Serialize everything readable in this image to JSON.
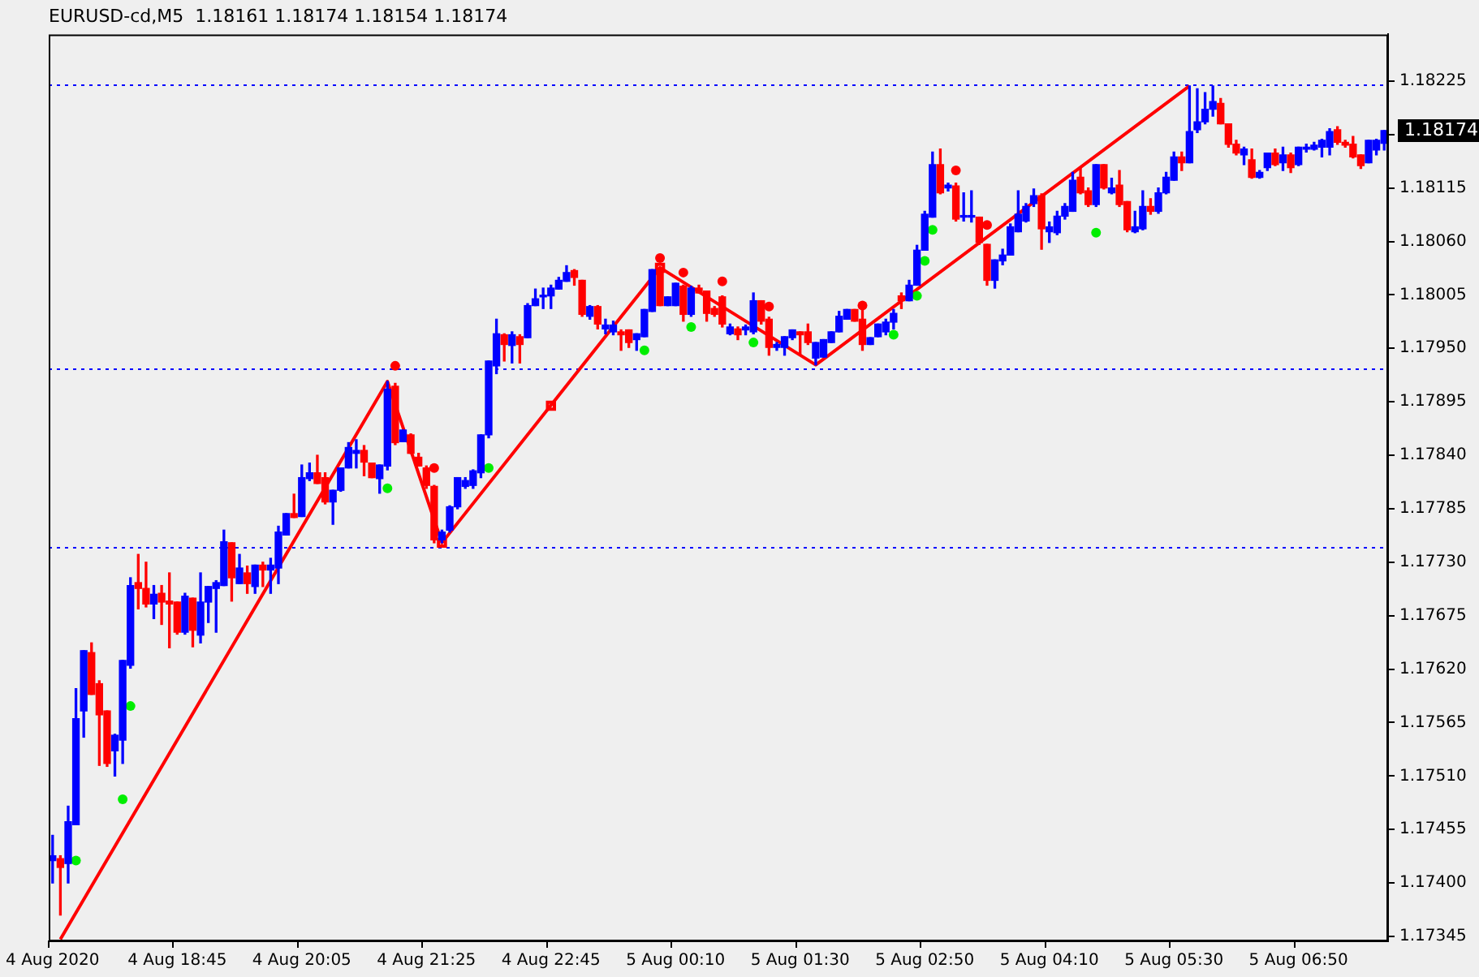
{
  "chart_data": {
    "type": "candlestick",
    "title": "EURUSD-cd,M5  1.18161 1.18174 1.18154 1.18174",
    "categories": [
      "4 Aug 2020",
      null,
      null,
      null,
      null,
      null,
      null,
      null,
      null,
      null,
      null,
      null,
      null,
      null,
      null,
      null,
      "4 Aug 18:45",
      null,
      null,
      null,
      null,
      null,
      null,
      null,
      null,
      null,
      null,
      null,
      null,
      null,
      null,
      null,
      "4 Aug 20:05",
      null,
      null,
      null,
      null,
      null,
      null,
      null,
      null,
      null,
      null,
      null,
      null,
      null,
      null,
      null,
      "4 Aug 21:25",
      null,
      null,
      null,
      null,
      null,
      null,
      null,
      null,
      null,
      null,
      null,
      null,
      null,
      null,
      null,
      "4 Aug 22:45",
      null,
      null,
      null,
      null,
      null,
      null,
      null,
      null,
      null,
      null,
      null,
      null,
      null,
      null,
      null,
      "5 Aug 00:10",
      null,
      null,
      null,
      null,
      null,
      null,
      null,
      null,
      null,
      null,
      null,
      null,
      null,
      null,
      null,
      "5 Aug 01:30",
      null,
      null,
      null,
      null,
      null,
      null,
      null,
      null,
      null,
      null,
      null,
      null,
      null,
      null,
      null,
      "5 Aug 02:50",
      null,
      null,
      null,
      null,
      null,
      null,
      null,
      null,
      null,
      null,
      null,
      null,
      null,
      null,
      null,
      "5 Aug 04:10",
      null,
      null,
      null,
      null,
      null,
      null,
      null,
      null,
      null,
      null,
      null,
      null,
      null,
      null,
      null,
      "5 Aug 05:30",
      null,
      null,
      null,
      null,
      null,
      null,
      null,
      null,
      null,
      null,
      null,
      null,
      null,
      null,
      null,
      "5 Aug 06:50",
      null,
      null,
      null,
      null,
      null,
      null,
      null,
      null,
      null,
      null,
      null
    ],
    "ohlc": [
      [
        1.17423,
        1.17449,
        1.174,
        1.17428
      ],
      [
        1.17425,
        1.17428,
        1.17367,
        1.17416
      ],
      [
        1.1742,
        1.17479,
        1.174,
        1.17463
      ],
      [
        1.1746,
        1.176,
        1.1746,
        1.17569
      ],
      [
        1.17577,
        1.17639,
        1.1755,
        1.17639
      ],
      [
        1.17637,
        1.17647,
        1.17594,
        1.17594
      ],
      [
        1.17605,
        1.17608,
        1.17521,
        1.17573
      ],
      [
        1.17577,
        1.17577,
        1.1752,
        1.17523
      ],
      [
        1.17536,
        1.17553,
        1.1751,
        1.17552
      ],
      [
        1.17547,
        1.17629,
        1.17523,
        1.17629
      ],
      [
        1.17624,
        1.17714,
        1.17621,
        1.17706
      ],
      [
        1.17709,
        1.17738,
        1.17682,
        1.17703
      ],
      [
        1.17703,
        1.1773,
        1.17684,
        1.17687
      ],
      [
        1.17687,
        1.17706,
        1.17672,
        1.17697
      ],
      [
        1.17698,
        1.17706,
        1.17666,
        1.17689
      ],
      [
        1.1769,
        1.17719,
        1.17642,
        1.17687
      ],
      [
        1.17689,
        1.17689,
        1.17656,
        1.17658
      ],
      [
        1.17658,
        1.17698,
        1.17656,
        1.17695
      ],
      [
        1.17693,
        1.17693,
        1.17643,
        1.1766
      ],
      [
        1.17655,
        1.17719,
        1.17647,
        1.17689
      ],
      [
        1.17689,
        1.17705,
        1.17668,
        1.17705
      ],
      [
        1.17703,
        1.17711,
        1.17658,
        1.17709
      ],
      [
        1.17706,
        1.17763,
        1.17706,
        1.17751
      ],
      [
        1.1775,
        1.1775,
        1.1769,
        1.17714
      ],
      [
        1.17708,
        1.17738,
        1.17708,
        1.17724
      ],
      [
        1.17719,
        1.17726,
        1.17698,
        1.17708
      ],
      [
        1.17705,
        1.17727,
        1.17698,
        1.17727
      ],
      [
        1.17727,
        1.1773,
        1.17705,
        1.17722
      ],
      [
        1.17722,
        1.17734,
        1.17698,
        1.17727
      ],
      [
        1.17724,
        1.17767,
        1.17708,
        1.17761
      ],
      [
        1.17758,
        1.1778,
        1.17758,
        1.1778
      ],
      [
        1.1778,
        1.178,
        1.17776,
        1.17776
      ],
      [
        1.17777,
        1.1783,
        1.17777,
        1.17817
      ],
      [
        1.17816,
        1.17832,
        1.17814,
        1.17822
      ],
      [
        1.17822,
        1.1784,
        1.17811,
        1.17811
      ],
      [
        1.17817,
        1.17822,
        1.1779,
        1.17792
      ],
      [
        1.17792,
        1.17804,
        1.17769,
        1.17804
      ],
      [
        1.17804,
        1.17827,
        1.17803,
        1.17827
      ],
      [
        1.17827,
        1.17853,
        1.17827,
        1.17848
      ],
      [
        1.17842,
        1.17856,
        1.17827,
        1.17845
      ],
      [
        1.17845,
        1.1785,
        1.17819,
        1.17833
      ],
      [
        1.17832,
        1.17832,
        1.17817,
        1.17817
      ],
      [
        1.17816,
        1.1783,
        1.17801,
        1.1783
      ],
      [
        1.17829,
        1.17916,
        1.17825,
        1.17908
      ],
      [
        1.17911,
        1.17914,
        1.17851,
        1.17853
      ],
      [
        1.17854,
        1.17866,
        1.17854,
        1.17866
      ],
      [
        1.17861,
        1.17862,
        1.17842,
        1.17842
      ],
      [
        1.17838,
        1.17842,
        1.17829,
        1.17829
      ],
      [
        1.17827,
        1.17829,
        1.17806,
        1.17809
      ],
      [
        1.17808,
        1.17809,
        1.1775,
        1.17753
      ],
      [
        1.17753,
        1.17763,
        1.1775,
        1.17761
      ],
      [
        1.17763,
        1.17788,
        1.17761,
        1.17787
      ],
      [
        1.17787,
        1.17817,
        1.17785,
        1.17817
      ],
      [
        1.17808,
        1.17817,
        1.17806,
        1.17814
      ],
      [
        1.17809,
        1.17825,
        1.17806,
        1.17824
      ],
      [
        1.17822,
        1.17861,
        1.17817,
        1.17861
      ],
      [
        1.17861,
        1.17937,
        1.17858,
        1.17937
      ],
      [
        1.17932,
        1.1798,
        1.17924,
        1.17965
      ],
      [
        1.17964,
        1.17965,
        1.17937,
        1.17954
      ],
      [
        1.17953,
        1.17967,
        1.17935,
        1.17964
      ],
      [
        1.17962,
        1.17964,
        1.17935,
        1.17954
      ],
      [
        1.17961,
        1.17996,
        1.17961,
        1.17994
      ],
      [
        1.17994,
        1.18011,
        1.17994,
        1.18001
      ],
      [
        1.18003,
        1.18012,
        1.17991,
        1.18004
      ],
      [
        1.18004,
        1.18015,
        1.17991,
        1.18012
      ],
      [
        1.18011,
        1.18023,
        1.18011,
        1.1802
      ],
      [
        1.18019,
        1.18035,
        1.18019,
        1.18028
      ],
      [
        1.1803,
        1.18031,
        1.18015,
        1.18023
      ],
      [
        1.1802,
        1.1802,
        1.17983,
        1.17985
      ],
      [
        1.17983,
        1.17994,
        1.1798,
        1.17993
      ],
      [
        1.17993,
        1.17994,
        1.1797,
        1.17975
      ],
      [
        1.1797,
        1.1798,
        1.17965,
        1.17974
      ],
      [
        1.17967,
        1.17978,
        1.17964,
        1.17974
      ],
      [
        1.17967,
        1.17969,
        1.17948,
        1.17964
      ],
      [
        1.17969,
        1.17969,
        1.17951,
        1.17956
      ],
      [
        1.17959,
        1.17965,
        1.17948,
        1.17965
      ],
      [
        1.17962,
        1.1799,
        1.17962,
        1.1799
      ],
      [
        1.17988,
        1.18031,
        1.17988,
        1.18031
      ],
      [
        1.18028,
        1.18033,
        1.17994,
        1.17994
      ],
      [
        1.17994,
        1.18003,
        1.17994,
        1.18003
      ],
      [
        1.17994,
        1.18017,
        1.17994,
        1.18017
      ],
      [
        1.18014,
        1.18015,
        1.17978,
        1.17985
      ],
      [
        1.17985,
        1.18014,
        1.17983,
        1.18012
      ],
      [
        1.18012,
        1.18015,
        1.18007,
        1.18007
      ],
      [
        1.18009,
        1.18009,
        1.17978,
        1.17986
      ],
      [
        1.17991,
        1.17993,
        1.17983,
        1.17985
      ],
      [
        1.18003,
        1.18004,
        1.17972,
        1.17975
      ],
      [
        1.17965,
        1.17975,
        1.17964,
        1.17972
      ],
      [
        1.1797,
        1.17972,
        1.17959,
        1.17964
      ],
      [
        1.17969,
        1.17974,
        1.17964,
        1.17972
      ],
      [
        1.17967,
        1.18007,
        1.17965,
        1.17999
      ],
      [
        1.17999,
        1.17999,
        1.17975,
        1.17978
      ],
      [
        1.1798,
        1.17982,
        1.17943,
        1.17951
      ],
      [
        1.17951,
        1.17956,
        1.17948,
        1.17954
      ],
      [
        1.17951,
        1.17962,
        1.17943,
        1.17962
      ],
      [
        1.17961,
        1.17969,
        1.17959,
        1.17969
      ],
      [
        1.17967,
        1.17967,
        1.17943,
        1.17964
      ],
      [
        1.17967,
        1.17975,
        1.17954,
        1.17956
      ],
      [
        1.1794,
        1.17956,
        1.17933,
        1.17956
      ],
      [
        1.17941,
        1.17959,
        1.17941,
        1.17959
      ],
      [
        1.17956,
        1.17967,
        1.17956,
        1.17967
      ],
      [
        1.17967,
        1.17988,
        1.17967,
        1.17983
      ],
      [
        1.1798,
        1.1799,
        1.1798,
        1.1799
      ],
      [
        1.1799,
        1.1799,
        1.17978,
        1.17978
      ],
      [
        1.1798,
        1.17994,
        1.17948,
        1.17954
      ],
      [
        1.17954,
        1.17961,
        1.17954,
        1.17961
      ],
      [
        1.17962,
        1.17975,
        1.17962,
        1.17975
      ],
      [
        1.17967,
        1.1798,
        1.17964,
        1.17977
      ],
      [
        1.17977,
        1.1799,
        1.1797,
        1.17986
      ],
      [
        1.18004,
        1.18007,
        1.17991,
        1.17999
      ],
      [
        1.17999,
        1.1802,
        1.17999,
        1.18015
      ],
      [
        1.18015,
        1.18056,
        1.18015,
        1.18051
      ],
      [
        1.18051,
        1.18091,
        1.18051,
        1.18088
      ],
      [
        1.18085,
        1.18152,
        1.18085,
        1.18139
      ],
      [
        1.18139,
        1.18155,
        1.18109,
        1.1811
      ],
      [
        1.18115,
        1.1812,
        1.18112,
        1.18118
      ],
      [
        1.18117,
        1.1812,
        1.18081,
        1.18083
      ],
      [
        1.18085,
        1.1811,
        1.18081,
        1.18086
      ],
      [
        1.18085,
        1.18112,
        1.1808,
        1.18086
      ],
      [
        1.18085,
        1.18085,
        1.18057,
        1.18059
      ],
      [
        1.18057,
        1.18057,
        1.18015,
        1.1802
      ],
      [
        1.1802,
        1.18041,
        1.18012,
        1.18041
      ],
      [
        1.1804,
        1.18052,
        1.18036,
        1.18046
      ],
      [
        1.18046,
        1.18078,
        1.18046,
        1.18075
      ],
      [
        1.1807,
        1.18112,
        1.1807,
        1.18088
      ],
      [
        1.18081,
        1.18099,
        1.1808,
        1.18096
      ],
      [
        1.18099,
        1.18114,
        1.18096,
        1.18107
      ],
      [
        1.18107,
        1.18109,
        1.18052,
        1.18073
      ],
      [
        1.1807,
        1.1808,
        1.18059,
        1.18075
      ],
      [
        1.18069,
        1.18091,
        1.18067,
        1.18086
      ],
      [
        1.18086,
        1.18099,
        1.18083,
        1.18096
      ],
      [
        1.18091,
        1.18131,
        1.18091,
        1.18123
      ],
      [
        1.18126,
        1.18135,
        1.18109,
        1.1811
      ],
      [
        1.18112,
        1.18115,
        1.18096,
        1.18098
      ],
      [
        1.18098,
        1.18139,
        1.18096,
        1.18139
      ],
      [
        1.18139,
        1.18139,
        1.18114,
        1.18115
      ],
      [
        1.1811,
        1.18125,
        1.18109,
        1.18115
      ],
      [
        1.18118,
        1.18133,
        1.18096,
        1.18098
      ],
      [
        1.18101,
        1.18101,
        1.1807,
        1.18072
      ],
      [
        1.1807,
        1.18091,
        1.18069,
        1.18075
      ],
      [
        1.18073,
        1.18112,
        1.18072,
        1.18096
      ],
      [
        1.18096,
        1.18104,
        1.18088,
        1.18091
      ],
      [
        1.18091,
        1.18115,
        1.18089,
        1.1811
      ],
      [
        1.1811,
        1.18131,
        1.18109,
        1.18126
      ],
      [
        1.18123,
        1.18152,
        1.18123,
        1.18147
      ],
      [
        1.18147,
        1.18152,
        1.18133,
        1.18141
      ],
      [
        1.18141,
        1.1822,
        1.18141,
        1.18173
      ],
      [
        1.18175,
        1.18217,
        1.18172,
        1.18183
      ],
      [
        1.18183,
        1.18213,
        1.18181,
        1.18196
      ],
      [
        1.18196,
        1.1822,
        1.18189,
        1.18204
      ],
      [
        1.18202,
        1.18207,
        1.18181,
        1.18181
      ],
      [
        1.18181,
        1.18181,
        1.18157,
        1.1816
      ],
      [
        1.1816,
        1.18164,
        1.18149,
        1.18151
      ],
      [
        1.18149,
        1.18157,
        1.18139,
        1.18155
      ],
      [
        1.18144,
        1.18155,
        1.18125,
        1.18126
      ],
      [
        1.18126,
        1.18133,
        1.18125,
        1.18131
      ],
      [
        1.18136,
        1.18151,
        1.18133,
        1.18151
      ],
      [
        1.18151,
        1.18155,
        1.18138,
        1.18139
      ],
      [
        1.18141,
        1.18157,
        1.18133,
        1.18149
      ],
      [
        1.18149,
        1.18151,
        1.18131,
        1.18136
      ],
      [
        1.18139,
        1.18157,
        1.18138,
        1.18157
      ],
      [
        1.18155,
        1.1816,
        1.18152,
        1.18157
      ],
      [
        1.18155,
        1.18162,
        1.18154,
        1.18159
      ],
      [
        1.18157,
        1.18165,
        1.18147,
        1.18164
      ],
      [
        1.18157,
        1.18176,
        1.18149,
        1.18173
      ],
      [
        1.18175,
        1.18178,
        1.1816,
        1.18162
      ],
      [
        1.18162,
        1.18164,
        1.18157,
        1.18159
      ],
      [
        1.1816,
        1.18168,
        1.18146,
        1.18147
      ],
      [
        1.18149,
        1.18149,
        1.18135,
        1.18138
      ],
      [
        1.18141,
        1.18164,
        1.18141,
        1.18164
      ],
      [
        1.18154,
        1.18165,
        1.18149,
        1.18164
      ],
      [
        1.18161,
        1.18174,
        1.18154,
        1.18174
      ]
    ],
    "colors": [
      "#0000ff",
      "#ff0000",
      "#0000ff",
      "#0000ff",
      "#0000ff",
      "#ff0000",
      "#ff0000",
      "#ff0000",
      "#0000ff",
      "#0000ff",
      "#0000ff",
      "#ff0000",
      "#ff0000",
      "#0000ff",
      "#ff0000",
      "#ff0000",
      "#ff0000",
      "#0000ff",
      "#ff0000",
      "#0000ff",
      "#0000ff",
      "#0000ff",
      "#0000ff",
      "#ff0000",
      "#0000ff",
      "#ff0000",
      "#0000ff",
      "#ff0000",
      "#0000ff",
      "#0000ff",
      "#0000ff",
      "#ff0000",
      "#0000ff",
      "#0000ff",
      "#ff0000",
      "#ff0000",
      "#0000ff",
      "#0000ff",
      "#0000ff",
      "#0000ff",
      "#ff0000",
      "#ff0000",
      "#0000ff",
      "#0000ff",
      "#ff0000",
      "#0000ff",
      "#ff0000",
      "#ff0000",
      "#ff0000",
      "#ff0000",
      "#0000ff",
      "#0000ff",
      "#0000ff",
      "#0000ff",
      "#0000ff",
      "#0000ff",
      "#0000ff",
      "#0000ff",
      "#ff0000",
      "#0000ff",
      "#ff0000",
      "#0000ff",
      "#0000ff",
      "#0000ff",
      "#0000ff",
      "#0000ff",
      "#0000ff",
      "#ff0000",
      "#ff0000",
      "#0000ff",
      "#ff0000",
      "#0000ff",
      "#0000ff",
      "#ff0000",
      "#ff0000",
      "#0000ff",
      "#0000ff",
      "#0000ff",
      "#ff0000",
      "#0000ff",
      "#0000ff",
      "#ff0000",
      "#0000ff",
      "#ff0000",
      "#ff0000",
      "#ff0000",
      "#ff0000",
      "#0000ff",
      "#ff0000",
      "#0000ff",
      "#0000ff",
      "#ff0000",
      "#ff0000",
      "#0000ff",
      "#0000ff",
      "#0000ff",
      "#ff0000",
      "#ff0000",
      "#0000ff",
      "#0000ff",
      "#0000ff",
      "#0000ff",
      "#0000ff",
      "#ff0000",
      "#ff0000",
      "#0000ff",
      "#0000ff",
      "#0000ff",
      "#0000ff",
      "#ff0000",
      "#0000ff",
      "#0000ff",
      "#0000ff",
      "#0000ff",
      "#ff0000",
      "#0000ff",
      "#ff0000",
      "#0000ff",
      "#0000ff",
      "#ff0000",
      "#ff0000",
      "#0000ff",
      "#0000ff",
      "#0000ff",
      "#0000ff",
      "#0000ff",
      "#0000ff",
      "#ff0000",
      "#0000ff",
      "#0000ff",
      "#0000ff",
      "#0000ff",
      "#ff0000",
      "#ff0000",
      "#0000ff",
      "#ff0000",
      "#0000ff",
      "#ff0000",
      "#ff0000",
      "#0000ff",
      "#0000ff",
      "#ff0000",
      "#0000ff",
      "#0000ff",
      "#0000ff",
      "#ff0000",
      "#0000ff",
      "#0000ff",
      "#0000ff",
      "#0000ff",
      "#ff0000",
      "#ff0000",
      "#ff0000",
      "#0000ff",
      "#ff0000",
      "#0000ff",
      "#0000ff",
      "#ff0000",
      "#0000ff",
      "#ff0000",
      "#0000ff",
      "#0000ff",
      "#0000ff",
      "#0000ff",
      "#0000ff",
      "#ff0000",
      "#ff0000",
      "#ff0000",
      "#ff0000",
      "#0000ff",
      "#0000ff",
      "#0000ff"
    ],
    "series": [
      {
        "type": "line",
        "color": "#ff0000",
        "marker": "none",
        "line_style": "solid",
        "values": [
          null,
          1.17342,
          null,
          null,
          null,
          null,
          null,
          null,
          null,
          null,
          null,
          null,
          null,
          null,
          null,
          null,
          null,
          null,
          null,
          null,
          null,
          null,
          null,
          null,
          null,
          null,
          null,
          null,
          null,
          null,
          null,
          null,
          null,
          null,
          null,
          null,
          null,
          null,
          null,
          null,
          null,
          null,
          null,
          1.17916,
          null,
          null,
          null,
          null,
          null,
          null,
          1.1775,
          null,
          null,
          null,
          null,
          null,
          null,
          null,
          null,
          null,
          null,
          null,
          null,
          null,
          null,
          null,
          null,
          null,
          null,
          null,
          null,
          null,
          null,
          null,
          null,
          null,
          null,
          null,
          1.18033,
          null,
          null,
          null,
          null,
          null,
          null,
          null,
          null,
          null,
          null,
          null,
          null,
          null,
          null,
          null,
          null,
          null,
          null,
          null,
          1.17933,
          null,
          null,
          null,
          null,
          null,
          null,
          null,
          null,
          null,
          null,
          null,
          null,
          null,
          null,
          null,
          null,
          null,
          null,
          null,
          null,
          null,
          null,
          null,
          null,
          null,
          null,
          null,
          null,
          null,
          null,
          null,
          null,
          null,
          null,
          null,
          null,
          null,
          null,
          null,
          null,
          null,
          null,
          null,
          null,
          null,
          null,
          null,
          1.1822,
          null,
          null,
          null,
          null,
          null,
          null,
          null,
          null,
          null,
          null,
          null,
          null,
          null,
          null,
          null,
          null,
          null,
          null,
          null,
          null,
          null,
          null,
          null,
          null,
          null
        ]
      },
      {
        "type": "scatter",
        "color": "#ff0000",
        "marker": "square",
        "values": [
          null,
          null,
          null,
          null,
          null,
          null,
          null,
          null,
          null,
          null,
          null,
          null,
          null,
          null,
          null,
          null,
          null,
          null,
          null,
          null,
          null,
          null,
          null,
          null,
          null,
          null,
          null,
          null,
          null,
          null,
          null,
          null,
          null,
          null,
          null,
          null,
          null,
          null,
          null,
          null,
          null,
          null,
          null,
          null,
          null,
          null,
          null,
          null,
          null,
          null,
          1.1775,
          null,
          null,
          null,
          null,
          null,
          null,
          null,
          null,
          null,
          null,
          null,
          null,
          null,
          1.17891,
          null,
          null,
          null,
          null,
          null,
          null,
          null,
          null,
          null,
          null,
          null,
          null,
          null,
          1.18033,
          null,
          null,
          null,
          null,
          null,
          null,
          null,
          null,
          null,
          null,
          null,
          null,
          null,
          null,
          null,
          null,
          null,
          null,
          null,
          null,
          null,
          null,
          null,
          null,
          null,
          null,
          null,
          null,
          null,
          null,
          null,
          null,
          null,
          null,
          null,
          null,
          null,
          null,
          null,
          null,
          null,
          null,
          null,
          null,
          null,
          null,
          null,
          null,
          null,
          null,
          null,
          null,
          null,
          null,
          null,
          null,
          null,
          null,
          null,
          null,
          null,
          null,
          null,
          null,
          null,
          null,
          null,
          null,
          null,
          null,
          null,
          null,
          null,
          null,
          null,
          null,
          null,
          null,
          null,
          null,
          null,
          null,
          null,
          null,
          null,
          null,
          null,
          null,
          null,
          null,
          null,
          null,
          null
        ]
      },
      {
        "type": "scatter",
        "color": "#ff0000",
        "marker": "circle",
        "values": [
          null,
          null,
          null,
          null,
          null,
          null,
          null,
          null,
          null,
          null,
          null,
          null,
          null,
          null,
          null,
          null,
          null,
          null,
          null,
          null,
          null,
          null,
          null,
          null,
          null,
          null,
          null,
          null,
          null,
          null,
          null,
          null,
          null,
          null,
          null,
          null,
          null,
          null,
          null,
          null,
          null,
          null,
          null,
          null,
          1.17932,
          null,
          null,
          null,
          null,
          1.17827,
          null,
          null,
          null,
          null,
          null,
          null,
          null,
          null,
          null,
          null,
          null,
          null,
          null,
          null,
          null,
          null,
          null,
          null,
          null,
          null,
          null,
          null,
          null,
          null,
          null,
          null,
          null,
          null,
          1.18043,
          null,
          null,
          1.18028,
          null,
          null,
          null,
          null,
          1.18019,
          null,
          null,
          null,
          null,
          null,
          1.17993,
          null,
          null,
          null,
          null,
          null,
          null,
          null,
          null,
          null,
          null,
          null,
          1.17994,
          null,
          null,
          null,
          null,
          null,
          null,
          null,
          null,
          null,
          null,
          null,
          1.18133,
          null,
          null,
          null,
          1.18077,
          null,
          null,
          null,
          null,
          null,
          null,
          null,
          null,
          null,
          null,
          null,
          null,
          null,
          null,
          null,
          null,
          null,
          null,
          null,
          null,
          null,
          null,
          null,
          null,
          null,
          null,
          null,
          null,
          null,
          null,
          null,
          null,
          null,
          null,
          null,
          null,
          null,
          null,
          null,
          null,
          null,
          null,
          null,
          null,
          null,
          null,
          null,
          null,
          null,
          null,
          null
        ]
      },
      {
        "type": "scatter",
        "color": "#00ee00",
        "marker": "circle",
        "values": [
          null,
          null,
          null,
          1.17423,
          null,
          null,
          null,
          null,
          null,
          1.17486,
          1.17582,
          null,
          null,
          null,
          null,
          null,
          null,
          null,
          null,
          null,
          null,
          null,
          null,
          null,
          null,
          null,
          null,
          null,
          null,
          null,
          null,
          null,
          null,
          null,
          null,
          null,
          null,
          null,
          null,
          null,
          null,
          null,
          null,
          1.17806,
          null,
          null,
          null,
          null,
          null,
          null,
          null,
          null,
          null,
          null,
          null,
          null,
          1.17827,
          null,
          null,
          null,
          null,
          null,
          null,
          null,
          null,
          null,
          null,
          null,
          null,
          null,
          null,
          null,
          null,
          null,
          null,
          null,
          1.17948,
          null,
          null,
          null,
          null,
          null,
          1.17972,
          null,
          null,
          null,
          null,
          null,
          null,
          null,
          1.17956,
          null,
          null,
          null,
          null,
          null,
          null,
          null,
          null,
          null,
          null,
          null,
          null,
          null,
          null,
          null,
          null,
          null,
          1.17964,
          null,
          null,
          1.18004,
          1.1804,
          1.18072,
          null,
          null,
          null,
          null,
          null,
          null,
          null,
          null,
          null,
          null,
          null,
          null,
          null,
          null,
          null,
          null,
          null,
          null,
          null,
          null,
          1.18069,
          null,
          null,
          null,
          null,
          null,
          null,
          null,
          null,
          null,
          null,
          null,
          null,
          null,
          null,
          null,
          null,
          null,
          null,
          null,
          null,
          null,
          null,
          null,
          null,
          null,
          null,
          null,
          null,
          null,
          null,
          null,
          null,
          null,
          null,
          null,
          null,
          null
        ]
      }
    ],
    "ylim": [
      1.1734,
      1.18273
    ],
    "yticks": [
      1.18225,
      {
        "value": 1.1817,
        "label": null
      },
      1.18115,
      {
        "value": 1.1806,
        "label": "1.18060"
      },
      1.18005,
      {
        "value": 1.1795,
        "label": "1.17950"
      },
      1.17895,
      {
        "value": 1.1784,
        "label": "1.17840"
      },
      1.17785,
      {
        "value": 1.1773,
        "label": "1.17730"
      },
      1.17675,
      {
        "value": 1.1762,
        "label": "1.17620"
      },
      1.17565,
      {
        "value": 1.1751,
        "label": "1.17510"
      },
      1.17455,
      {
        "value": 1.174,
        "label": "1.17400"
      },
      1.17345
    ],
    "ref_lines": [
      {
        "axis": "y",
        "value": 1.18222,
        "color": "#0000ff",
        "line_style": "dotted"
      },
      {
        "axis": "y",
        "value": 1.17929,
        "color": "#0000ff",
        "line_style": "dotted"
      },
      {
        "axis": "y",
        "value": 1.17745,
        "color": "#0000ff",
        "line_style": "dotted"
      }
    ],
    "annotations": [
      "1.18174"
    ],
    "grid": false,
    "legend": false
  }
}
